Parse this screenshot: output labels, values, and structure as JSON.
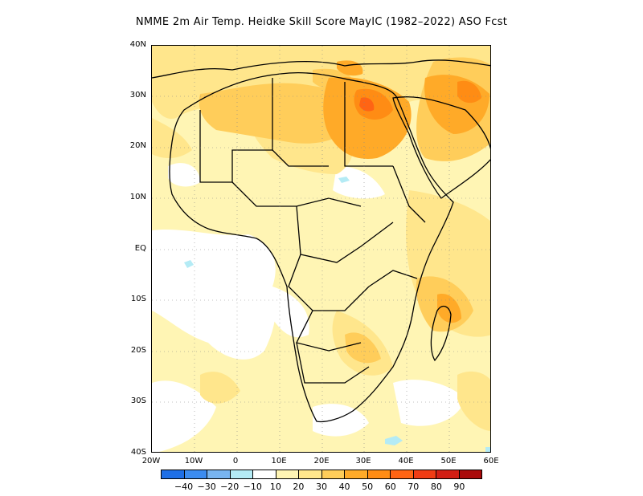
{
  "title": "NMME 2m Air Temp. Heidke Skill Score MayIC (1982–2022) ASO Fcst",
  "lat_labels": [
    "40N",
    "30N",
    "20N",
    "10N",
    "EQ",
    "10S",
    "20S",
    "30S",
    "40S"
  ],
  "lon_labels": [
    "20W",
    "10W",
    "0",
    "10E",
    "20E",
    "30E",
    "40E",
    "50E",
    "60E"
  ],
  "colorbar": {
    "colors": [
      "#1e6fe6",
      "#3c8cf0",
      "#78b4f0",
      "#b4ebf5",
      "#ffffff",
      "#fff5b4",
      "#ffe68c",
      "#ffcd5a",
      "#ffaa28",
      "#ff8c14",
      "#ff6414",
      "#f03c14",
      "#d21e14",
      "#aa0a0a"
    ],
    "labels": [
      "−40",
      "−30",
      "−20",
      "−10",
      "10",
      "20",
      "30",
      "40",
      "50",
      "60",
      "70",
      "80",
      "90"
    ]
  },
  "map": {
    "region": "Africa",
    "lon_range": [
      -20,
      60
    ],
    "lat_range": [
      -40,
      40
    ],
    "grid_lines": "dotted",
    "background_color": "#fff5b4"
  }
}
